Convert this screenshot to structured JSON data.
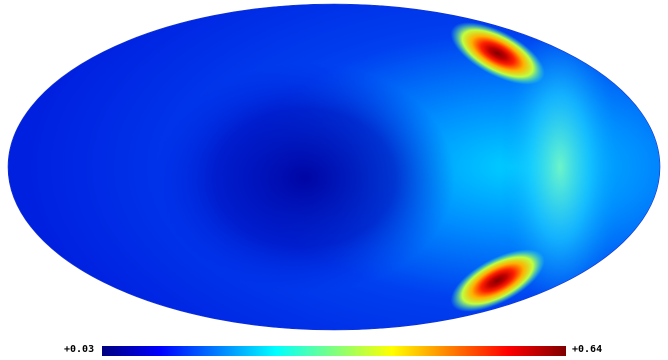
{
  "chart_data": {
    "type": "heatmap",
    "projection": "mollweide",
    "title": "",
    "colorbar": {
      "min_label": "+0.03",
      "max_label": "+0.64",
      "min": 0.03,
      "max": 0.64,
      "colormap": "jet"
    },
    "features": [
      {
        "name": "",
        "description": "",
        "lon_deg": -126,
        "lat_deg": 54,
        "value": 0.64
      },
      {
        "name": "",
        "description": "",
        "lon_deg": -126,
        "lat_deg": -54,
        "value": 0.64
      }
    ],
    "background_value": 0.05,
    "minimum_value_center": {
      "lon_deg": 48,
      "lat_deg": 0,
      "value": 0.03
    }
  }
}
